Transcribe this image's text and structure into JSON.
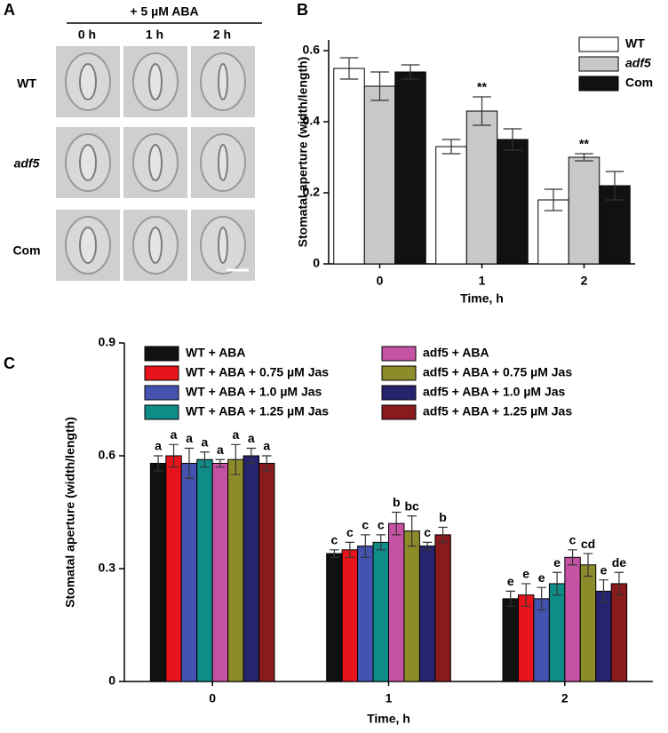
{
  "panel_a": {
    "label": "A",
    "treatment": "+ 5 µM ABA",
    "columns": [
      "0 h",
      "1 h",
      "2 h"
    ],
    "rows": [
      "WT",
      "adf5",
      "Com"
    ]
  },
  "chart_data": [
    {
      "type": "bar",
      "panel": "B",
      "xlabel": "Time, h",
      "ylabel": "Stomatal aperture (width/length)",
      "categories": [
        "0",
        "1",
        "2"
      ],
      "ylim": [
        0,
        0.63
      ],
      "yticks": [
        0,
        0.2,
        0.4,
        0.6
      ],
      "legend": "upper right",
      "series": [
        {
          "name": "WT",
          "color": "#ffffff",
          "values": [
            0.55,
            0.33,
            0.18
          ],
          "errors": [
            0.03,
            0.02,
            0.03
          ]
        },
        {
          "name": "adf5",
          "color": "#c8c8c8",
          "values": [
            0.5,
            0.43,
            0.3
          ],
          "errors": [
            0.04,
            0.04,
            0.01
          ],
          "significance": [
            null,
            "**",
            "**"
          ]
        },
        {
          "name": "Com",
          "color": "#111111",
          "values": [
            0.54,
            0.35,
            0.22
          ],
          "errors": [
            0.02,
            0.03,
            0.04
          ]
        }
      ]
    },
    {
      "type": "bar",
      "panel": "C",
      "xlabel": "Time, h",
      "ylabel": "Stomatal aperture (width/length)",
      "categories": [
        "0",
        "1",
        "2"
      ],
      "ylim": [
        0,
        0.9
      ],
      "yticks": [
        0,
        0.3,
        0.6,
        0.9
      ],
      "legend": "upper left",
      "series": [
        {
          "name": "WT + ABA",
          "color": "#111111",
          "values": [
            0.58,
            0.34,
            0.22
          ],
          "errors": [
            0.02,
            0.01,
            0.02
          ],
          "significance": [
            "a",
            "c",
            "e"
          ]
        },
        {
          "name": "WT + ABA + 0.75 µM Jas",
          "color": "#e8141c",
          "values": [
            0.6,
            0.35,
            0.23
          ],
          "errors": [
            0.03,
            0.02,
            0.03
          ],
          "significance": [
            "a",
            "c",
            "e"
          ]
        },
        {
          "name": "WT + ABA + 1.0 µM Jas",
          "color": "#4453b0",
          "values": [
            0.58,
            0.36,
            0.22
          ],
          "errors": [
            0.04,
            0.03,
            0.03
          ],
          "significance": [
            "a",
            "c",
            "e"
          ]
        },
        {
          "name": "WT + ABA + 1.25 µM Jas",
          "color": "#108c88",
          "values": [
            0.59,
            0.37,
            0.26
          ],
          "errors": [
            0.02,
            0.02,
            0.03
          ],
          "significance": [
            "a",
            "c",
            "e"
          ]
        },
        {
          "name": "adf5 + ABA",
          "color": "#c652a4",
          "values": [
            0.58,
            0.42,
            0.33
          ],
          "errors": [
            0.01,
            0.03,
            0.02
          ],
          "significance": [
            "a",
            "b",
            "c"
          ]
        },
        {
          "name": "adf5 + ABA + 0.75 µM Jas",
          "color": "#8e8c2a",
          "values": [
            0.59,
            0.4,
            0.31
          ],
          "errors": [
            0.04,
            0.04,
            0.03
          ],
          "significance": [
            "a",
            "bc",
            "cd"
          ]
        },
        {
          "name": "adf5 + ABA + 1.0 µM Jas",
          "color": "#27246f",
          "values": [
            0.6,
            0.36,
            0.24
          ],
          "errors": [
            0.02,
            0.01,
            0.03
          ],
          "significance": [
            "a",
            "c",
            "e"
          ]
        },
        {
          "name": "adf5 + ABA + 1.25 µM Jas",
          "color": "#8a1b1c",
          "values": [
            0.58,
            0.39,
            0.26
          ],
          "errors": [
            0.02,
            0.02,
            0.03
          ],
          "significance": [
            "a",
            "b",
            "de"
          ]
        }
      ]
    }
  ]
}
